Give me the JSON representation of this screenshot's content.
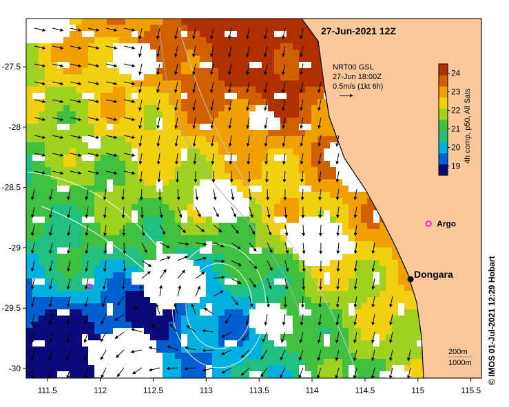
{
  "title": "27-Jun-2021 12Z",
  "credit": "© IMOS 01-Jul-2021 12:29 Hobart",
  "current_legend": {
    "lines": [
      "NRT00 GSL",
      "27-Jun 18:00Z",
      "0.5m/s (1kt 6h)"
    ]
  },
  "colorbar": {
    "label": "4h comp, p50, All Sats",
    "ticks": [
      19,
      20,
      21,
      22,
      23,
      24
    ],
    "range": [
      18.5,
      24.5
    ],
    "colors": [
      "#0a0a7a",
      "#0060d0",
      "#00b0e0",
      "#20c080",
      "#40c040",
      "#a0d020",
      "#f0d010",
      "#f0a000",
      "#d06000",
      "#b03000"
    ]
  },
  "depth_legend": [
    "200m",
    "1000m"
  ],
  "chart_data": {
    "type": "map",
    "x_axis": {
      "ticks": [
        "111.5",
        "112",
        "112.5",
        "113",
        "113.5",
        "114",
        "114.5",
        "115",
        "115.5"
      ],
      "range": [
        111.3,
        115.6
      ]
    },
    "y_axis": {
      "ticks": [
        "-27.5",
        "-28",
        "-28.5",
        "-29",
        "-29.5",
        "-30"
      ],
      "range": [
        -30.08,
        -27.1
      ]
    },
    "places": [
      {
        "name": "Argo",
        "lon": 115.1,
        "lat": -28.8,
        "kind": "argo"
      },
      {
        "name": "Dongara",
        "lon": 114.93,
        "lat": -29.26,
        "kind": "town"
      }
    ],
    "extra_floats": [
      {
        "lon": 111.9,
        "lat": -29.32
      }
    ]
  },
  "colors": {
    "land": "#fac89a",
    "coast": "#000000",
    "argo": "#e020e0"
  }
}
